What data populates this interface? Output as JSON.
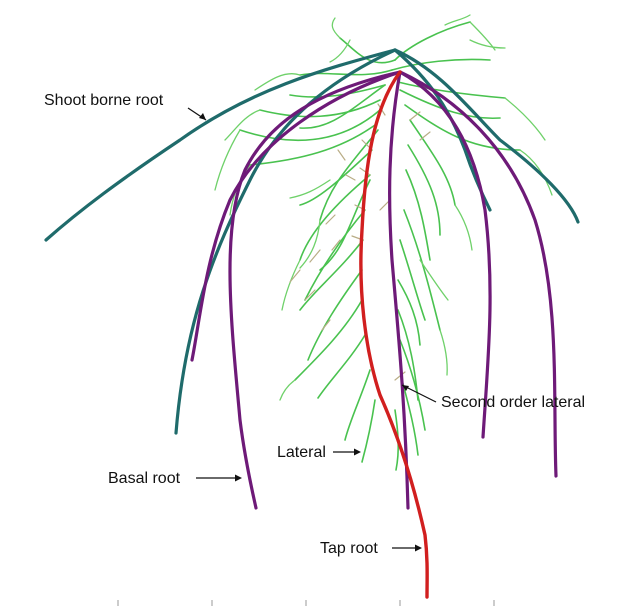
{
  "labels": {
    "shoot_borne_root": "Shoot borne root",
    "second_order_lateral": "Second order lateral",
    "lateral": "Lateral",
    "basal_root": "Basal root",
    "tap_root": "Tap root"
  },
  "colors": {
    "shoot_borne_root": "#1f6b6b",
    "basal_root": "#6e1a78",
    "tap_root": "#d11f1f",
    "lateral": "#49c24f",
    "second_order_lateral": "#b9ad86"
  }
}
